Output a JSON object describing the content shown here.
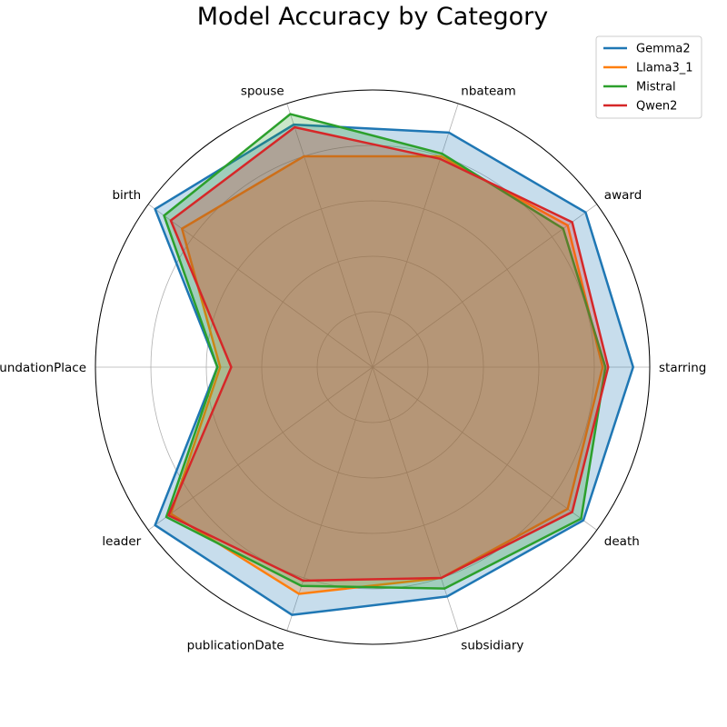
{
  "chart_data": {
    "type": "radar",
    "title": "Model Accuracy by Category",
    "categories": [
      "starring",
      "award",
      "nbateam",
      "spouse",
      "birth",
      "foundationPlace",
      "leader",
      "publicationDate",
      "subsidiary",
      "death"
    ],
    "rmax": 1.0,
    "grid": true,
    "legend_position": "top-right",
    "series": [
      {
        "name": "Gemma2",
        "color": "#1f77b4",
        "fill": true,
        "values": [
          0.94,
          0.95,
          0.89,
          0.92,
          0.97,
          0.56,
          0.97,
          0.94,
          0.87,
          0.94
        ]
      },
      {
        "name": "Llama3_1",
        "color": "#ff7f0e",
        "fill": true,
        "values": [
          0.83,
          0.87,
          0.8,
          0.8,
          0.85,
          0.55,
          0.9,
          0.86,
          0.8,
          0.87
        ]
      },
      {
        "name": "Mistral",
        "color": "#2ca02c",
        "fill": true,
        "values": [
          0.84,
          0.85,
          0.81,
          0.96,
          0.93,
          0.56,
          0.92,
          0.83,
          0.84,
          0.93
        ]
      },
      {
        "name": "Qwen2",
        "color": "#d62728",
        "fill": true,
        "values": [
          0.85,
          0.89,
          0.79,
          0.91,
          0.9,
          0.51,
          0.91,
          0.81,
          0.8,
          0.89
        ]
      }
    ]
  }
}
